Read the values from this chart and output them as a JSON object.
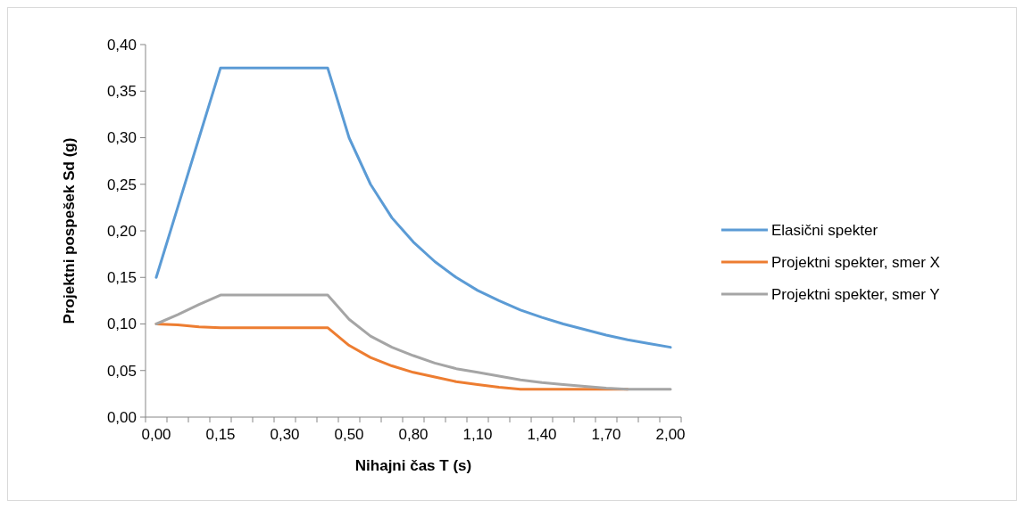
{
  "chart_data": {
    "type": "line",
    "xlabel": "Nihajni čas T (s)",
    "ylabel": "Projektni pospešek Sd (g)",
    "categories": [
      "0,00",
      null,
      null,
      "0,15",
      null,
      null,
      "0,30",
      null,
      null,
      "0,50",
      null,
      null,
      "0,80",
      null,
      null,
      "1,10",
      null,
      null,
      "1,40",
      null,
      null,
      "1,70",
      null,
      null,
      "2,00"
    ],
    "series": [
      {
        "name": "Elasični spekter",
        "color": "#5b9bd5",
        "values": [
          0.15,
          0.225,
          0.3,
          0.375,
          0.375,
          0.375,
          0.375,
          0.375,
          0.375,
          0.3,
          0.25,
          0.214,
          0.188,
          0.167,
          0.15,
          0.136,
          0.125,
          0.115,
          0.107,
          0.1,
          0.094,
          0.088,
          0.083,
          0.079,
          0.075
        ]
      },
      {
        "name": "Projektni spekter, smer X",
        "color": "#ed7d31",
        "values": [
          0.1,
          0.099,
          0.097,
          0.096,
          0.096,
          0.096,
          0.096,
          0.096,
          0.096,
          0.077,
          0.064,
          0.055,
          0.048,
          0.043,
          0.038,
          0.035,
          0.032,
          0.03,
          0.03,
          0.03,
          0.03,
          0.03,
          0.03,
          null,
          null
        ]
      },
      {
        "name": "Projektni spekter, smer Y",
        "color": "#a5a5a5",
        "values": [
          0.1,
          0.11,
          0.121,
          0.131,
          0.131,
          0.131,
          0.131,
          0.131,
          0.131,
          0.105,
          0.087,
          0.075,
          0.066,
          0.058,
          0.052,
          0.048,
          0.044,
          0.04,
          0.037,
          0.035,
          0.033,
          0.031,
          0.03,
          0.03,
          0.03
        ]
      }
    ],
    "ylim": [
      0,
      0.4
    ],
    "yticks": [
      {
        "value": 0,
        "label": "0,00"
      },
      {
        "value": 0.05,
        "label": "0,05"
      },
      {
        "value": 0.1,
        "label": "0,10"
      },
      {
        "value": 0.15,
        "label": "0,15"
      },
      {
        "value": 0.2,
        "label": "0,20"
      },
      {
        "value": 0.25,
        "label": "0,25"
      },
      {
        "value": 0.3,
        "label": "0,30"
      },
      {
        "value": 0.35,
        "label": "0,35"
      },
      {
        "value": 0.4,
        "label": "0,40"
      }
    ],
    "grid": false,
    "legend": "right",
    "marker": "none",
    "line_style": "solid"
  }
}
